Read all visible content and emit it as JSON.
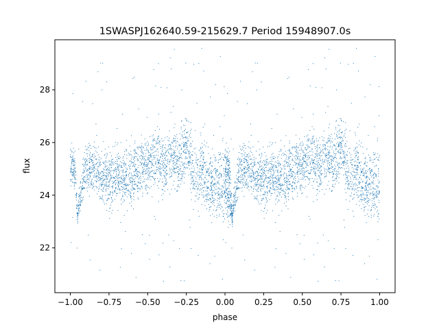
{
  "chart_data": {
    "type": "scatter",
    "title": "1SWASPJ162640.59-215629.7 Period 15948907.0s",
    "xlabel": "phase",
    "ylabel": "flux",
    "xlim": [
      -1.1,
      1.1
    ],
    "ylim": [
      20.3,
      29.9
    ],
    "xticks": [
      -1.0,
      -0.75,
      -0.5,
      -0.25,
      0.0,
      0.25,
      0.5,
      0.75,
      1.0
    ],
    "xtick_labels": [
      "−1.00",
      "−0.75",
      "−0.50",
      "−0.25",
      "0.00",
      "0.25",
      "0.50",
      "0.75",
      "1.00"
    ],
    "yticks": [
      22,
      24,
      26,
      28
    ],
    "ytick_labels": [
      "22",
      "24",
      "26",
      "28"
    ],
    "grid": false,
    "legend": "none",
    "point_color": "#1f77b4",
    "series": [
      {
        "x_range": [
          -1.0,
          1.0
        ],
        "mirrored_period": 1.0,
        "phase_profile": [
          {
            "phase": -1.0,
            "median": 25.2,
            "spread": 0.7
          },
          {
            "phase": -0.97,
            "median": 25.0,
            "spread": 0.8
          },
          {
            "phase": -0.955,
            "median": 23.3,
            "spread": 0.4
          },
          {
            "phase": -0.9,
            "median": 25.1,
            "spread": 0.9
          },
          {
            "phase": -0.85,
            "median": 25.0,
            "spread": 1.0
          },
          {
            "phase": -0.8,
            "median": 24.7,
            "spread": 1.0
          },
          {
            "phase": -0.75,
            "median": 24.6,
            "spread": 1.1
          },
          {
            "phase": -0.7,
            "median": 24.8,
            "spread": 1.2
          },
          {
            "phase": -0.65,
            "median": 24.5,
            "spread": 1.0
          },
          {
            "phase": -0.6,
            "median": 24.7,
            "spread": 1.1
          },
          {
            "phase": -0.55,
            "median": 25.0,
            "spread": 1.0
          },
          {
            "phase": -0.5,
            "median": 25.1,
            "spread": 1.0
          },
          {
            "phase": -0.45,
            "median": 25.5,
            "spread": 1.1
          },
          {
            "phase": -0.4,
            "median": 25.2,
            "spread": 1.1
          },
          {
            "phase": -0.35,
            "median": 25.4,
            "spread": 1.0
          },
          {
            "phase": -0.3,
            "median": 25.3,
            "spread": 1.2
          },
          {
            "phase": -0.25,
            "median": 26.0,
            "spread": 1.0
          },
          {
            "phase": -0.2,
            "median": 24.8,
            "spread": 1.3
          },
          {
            "phase": -0.15,
            "median": 24.9,
            "spread": 1.2
          },
          {
            "phase": -0.1,
            "median": 24.6,
            "spread": 1.2
          },
          {
            "phase": -0.05,
            "median": 24.4,
            "spread": 1.3
          },
          {
            "phase": 0.0,
            "median": 24.3,
            "spread": 1.1
          },
          {
            "phase": 0.05,
            "median": 23.2,
            "spread": 0.4
          }
        ],
        "outlier_range": [
          20.6,
          29.6
        ]
      }
    ]
  }
}
